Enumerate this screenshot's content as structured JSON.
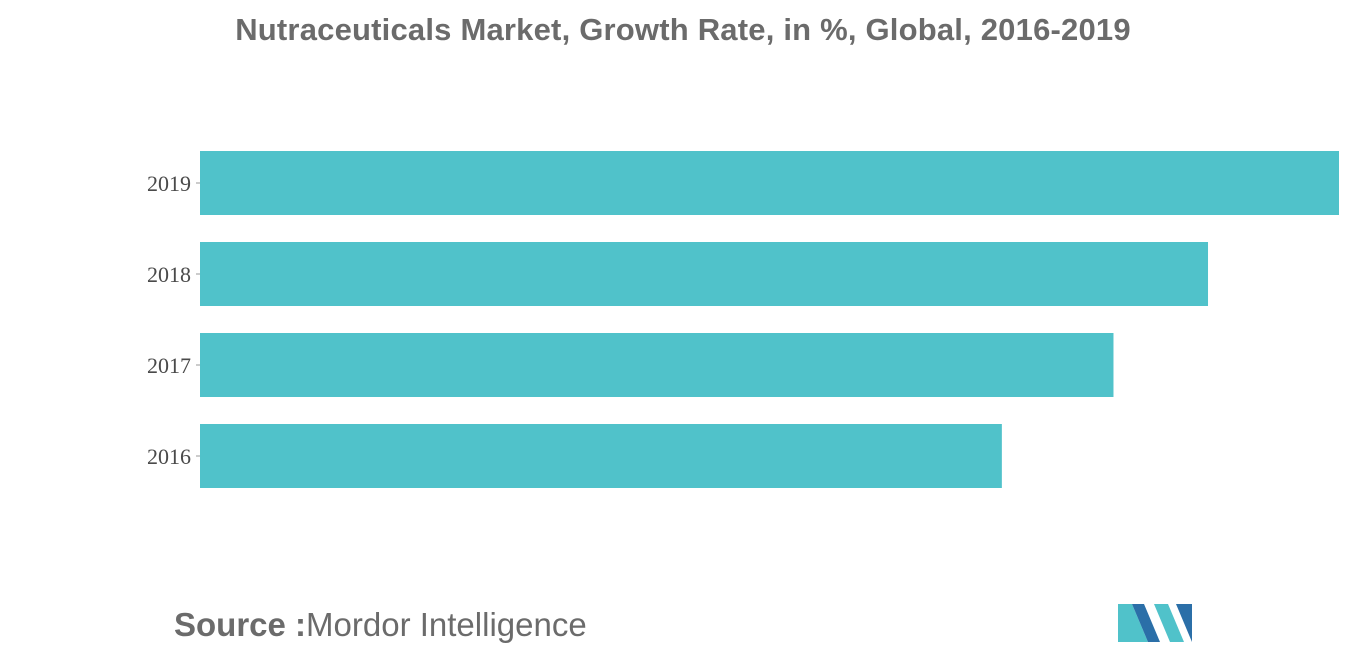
{
  "chart_data": {
    "type": "bar",
    "orientation": "horizontal",
    "title": "Nutraceuticals Market, Growth Rate, in %, Global, 2016-2019",
    "categories": [
      "2019",
      "2018",
      "2017",
      "2016"
    ],
    "values": [
      100,
      88.5,
      80.2,
      70.4
    ],
    "xlabel": "",
    "ylabel": "",
    "xlim": [
      0,
      100
    ],
    "grid": false,
    "legend": "none",
    "bar_color": "#50c2ca"
  },
  "footer": {
    "source_label": "Source :",
    "source_value": "Mordor Intelligence"
  },
  "logo": {
    "icon": "mordor-intelligence-logo",
    "colors": [
      "#2b6fa8",
      "#50c2ca"
    ]
  }
}
